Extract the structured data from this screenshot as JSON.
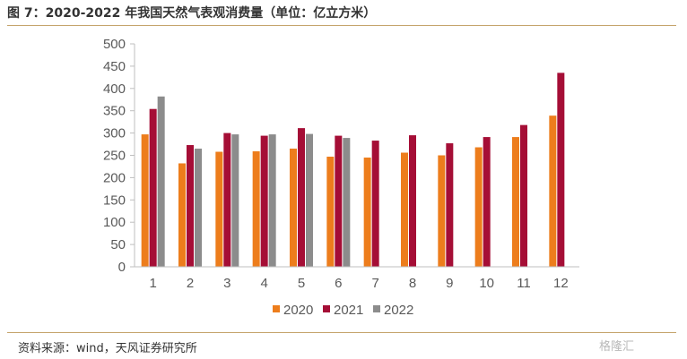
{
  "title": "图 7：2020-2022 年我国天然气表观消费量（单位：亿立方米）",
  "source": "资料来源：wind，天风证券研究所",
  "watermark": "格隆汇",
  "chart_data": {
    "type": "bar",
    "categories": [
      "1",
      "2",
      "3",
      "4",
      "5",
      "6",
      "7",
      "8",
      "9",
      "10",
      "11",
      "12"
    ],
    "series": [
      {
        "name": "2020",
        "color": "#ed7d1c",
        "values": [
          297,
          232,
          258,
          259,
          265,
          247,
          245,
          256,
          250,
          268,
          291,
          339
        ]
      },
      {
        "name": "2021",
        "color": "#a50e36",
        "values": [
          354,
          273,
          300,
          294,
          311,
          294,
          283,
          295,
          277,
          291,
          318,
          435
        ]
      },
      {
        "name": "2022",
        "color": "#8c8c8c",
        "values": [
          382,
          265,
          297,
          297,
          298,
          289,
          null,
          null,
          null,
          null,
          null,
          null
        ]
      }
    ],
    "ylim": [
      0,
      500
    ],
    "yticks": [
      0,
      50,
      100,
      150,
      200,
      250,
      300,
      350,
      400,
      450,
      500
    ],
    "legend_position": "bottom",
    "grid": false
  }
}
